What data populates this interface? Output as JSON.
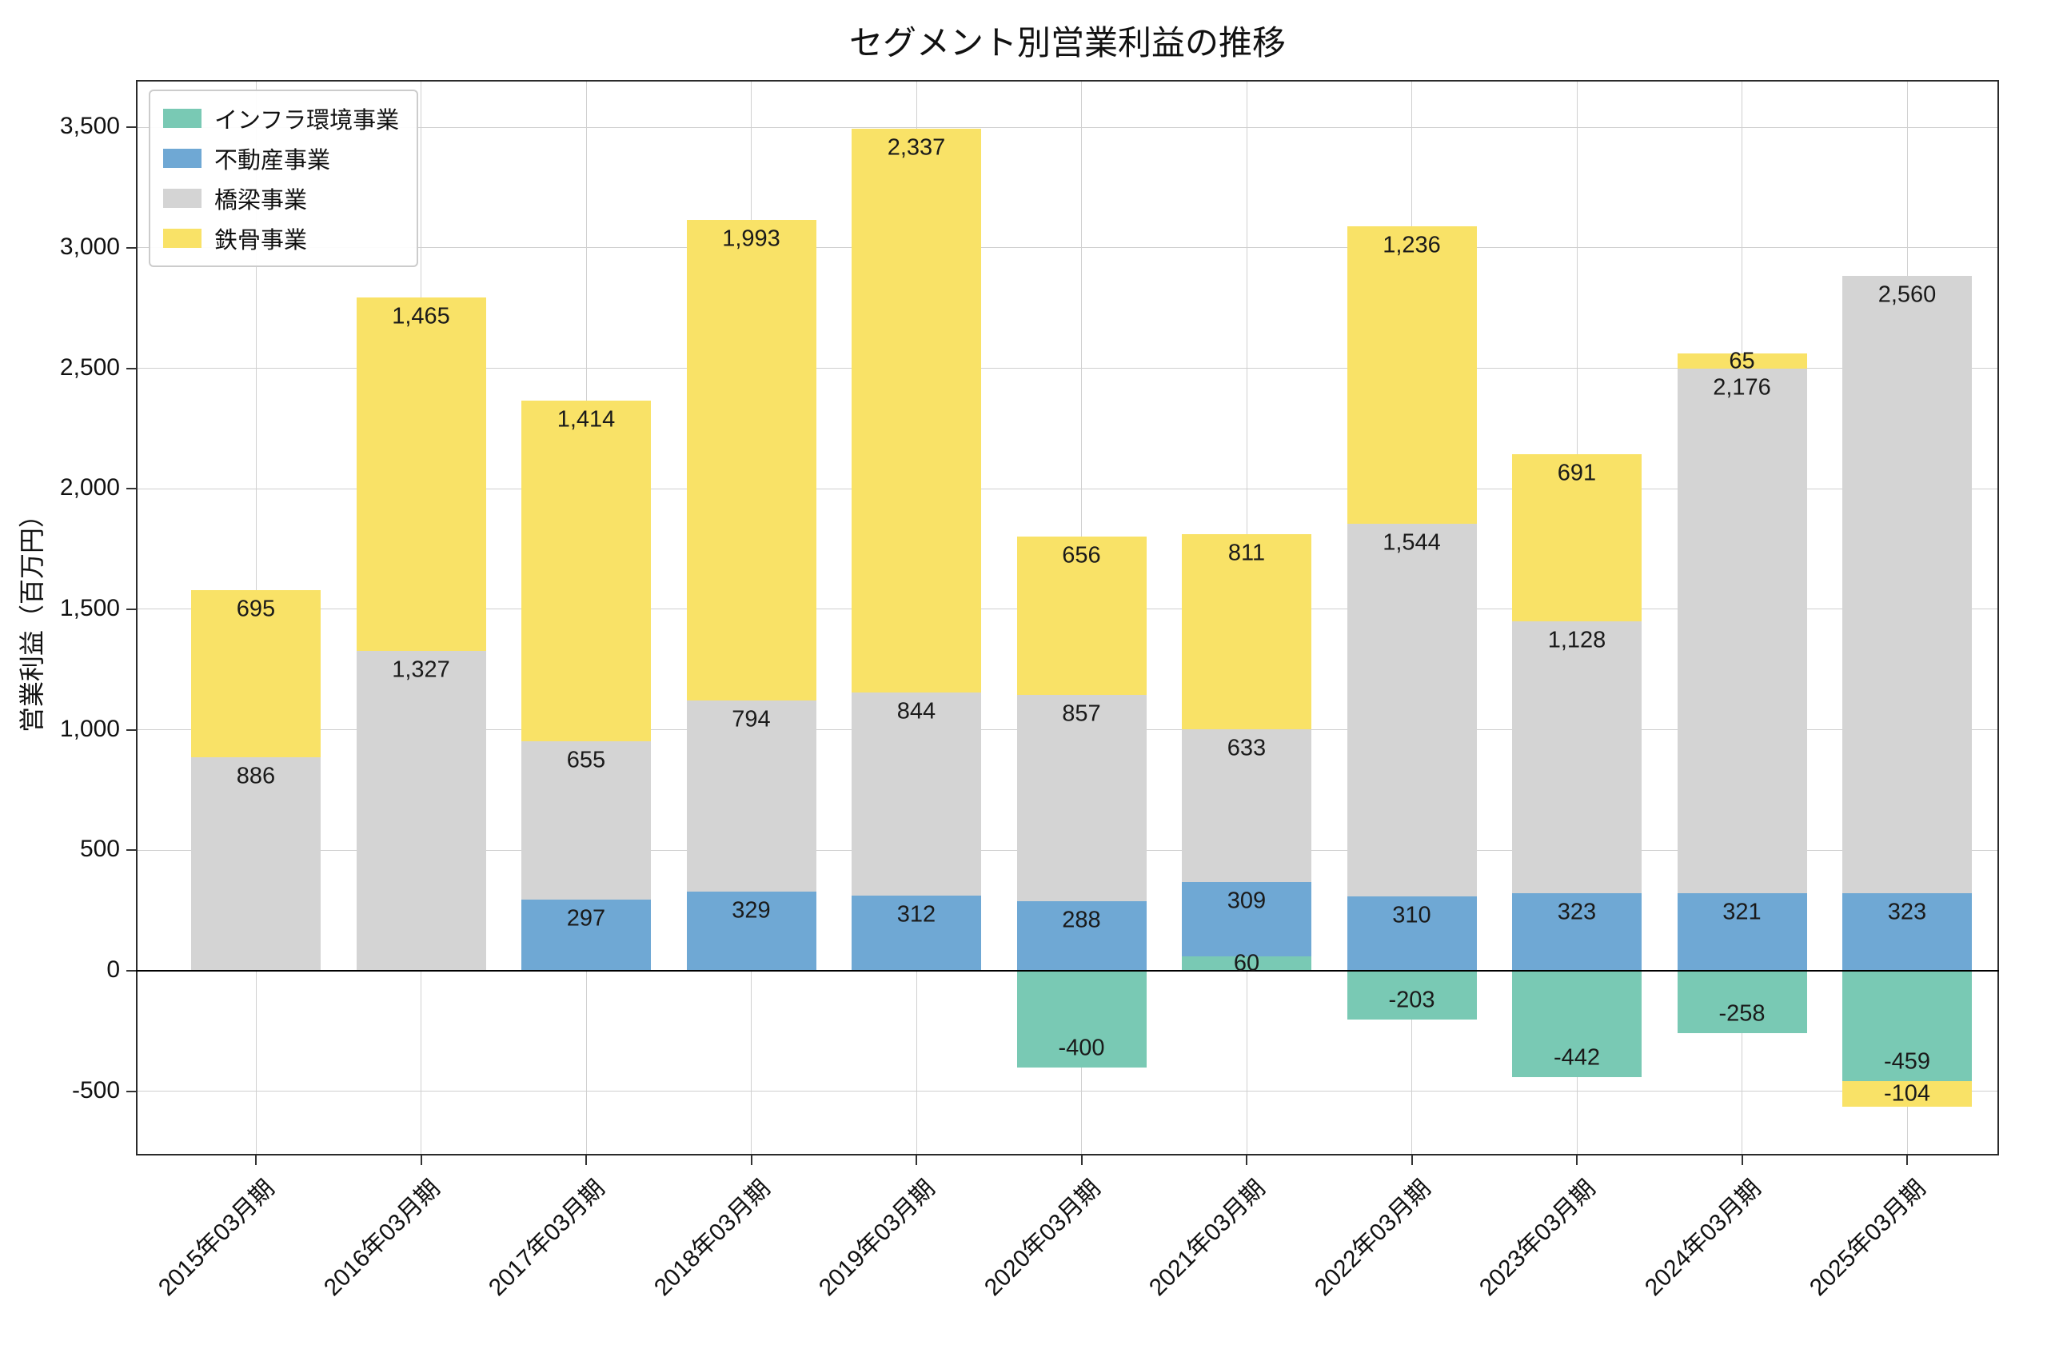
{
  "page": {
    "background": "#ffffff"
  },
  "chart_data": {
    "type": "bar",
    "stacked": true,
    "title": "セグメント別営業利益の推移",
    "ylabel": "営業利益（百万円）",
    "xlabel": "",
    "ylim": [
      -766,
      3696
    ],
    "yticks": [
      -500,
      0,
      500,
      1000,
      1500,
      2000,
      2500,
      3000,
      3500
    ],
    "grid": true,
    "legend_position": "upper left",
    "categories": [
      "2015年03月期",
      "2016年03月期",
      "2017年03月期",
      "2018年03月期",
      "2019年03月期",
      "2020年03月期",
      "2021年03月期",
      "2022年03月期",
      "2023年03月期",
      "2024年03月期",
      "2025年03月期"
    ],
    "series": [
      {
        "name": "インフラ環境事業",
        "color": "#79C9B4",
        "values": [
          null,
          null,
          null,
          null,
          null,
          -400,
          60,
          -203,
          -442,
          -258,
          -459
        ]
      },
      {
        "name": "不動産事業",
        "color": "#6FA8D4",
        "values": [
          null,
          null,
          297,
          329,
          312,
          288,
          309,
          310,
          323,
          321,
          323
        ]
      },
      {
        "name": "橋梁事業",
        "color": "#D4D4D4",
        "values": [
          886,
          1327,
          655,
          794,
          844,
          857,
          633,
          1544,
          1128,
          2176,
          2560
        ]
      },
      {
        "name": "鉄骨事業",
        "color": "#F9E267",
        "values": [
          695,
          1465,
          1414,
          1993,
          2337,
          656,
          811,
          1236,
          691,
          65,
          -104
        ]
      }
    ]
  }
}
